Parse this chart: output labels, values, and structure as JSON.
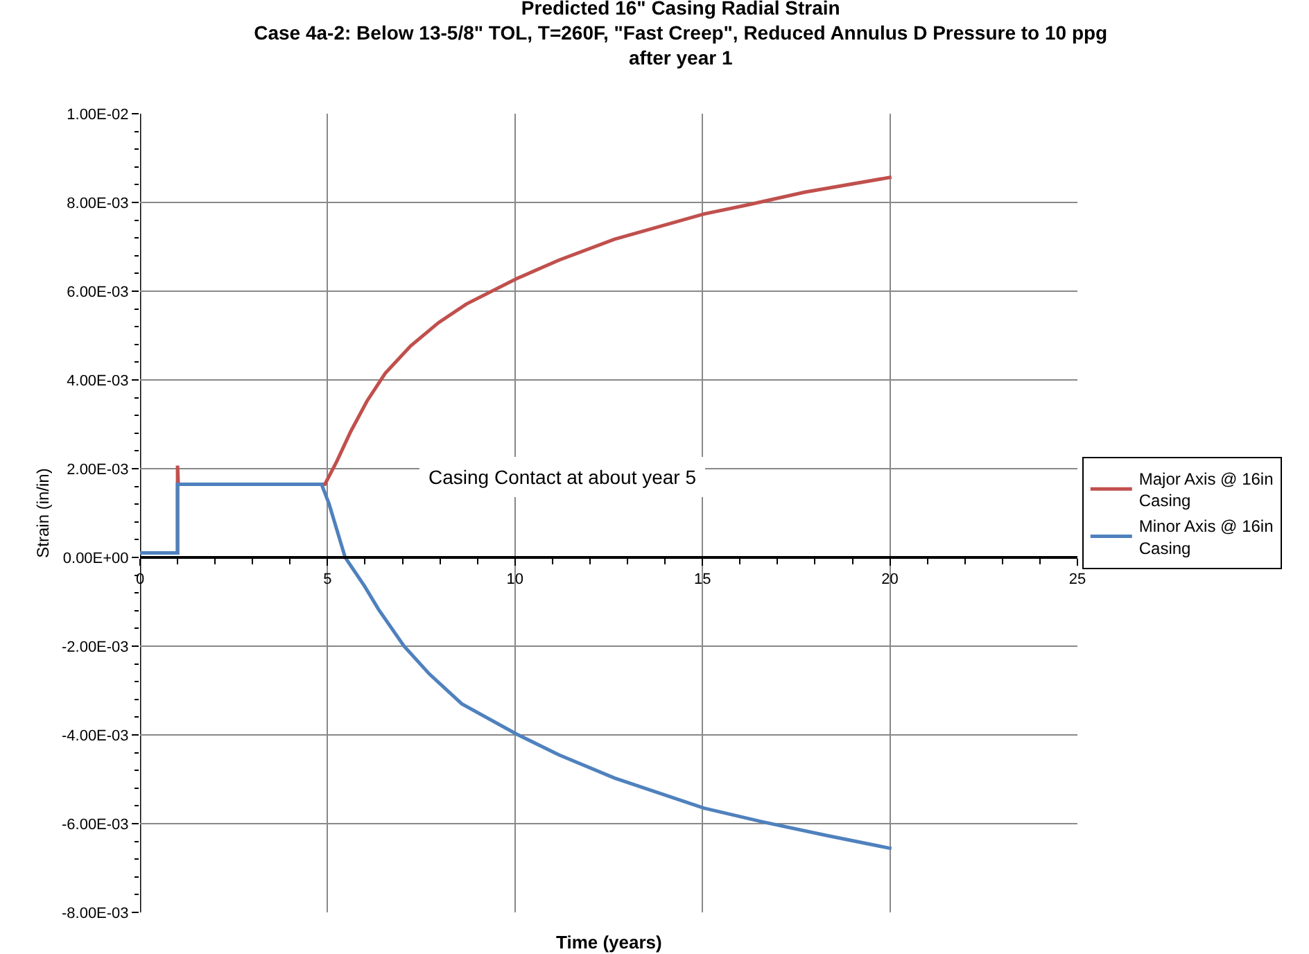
{
  "chart_data": {
    "type": "line",
    "title": "Predicted 16\" Casing Radial Strain",
    "subtitle": "Case 4a-2: Below 13-5/8\" TOL, T=260F, \"Fast Creep\", Reduced Annulus D Pressure to 10 ppg\nafter year 1",
    "xlabel": "Time (years)",
    "ylabel": "Strain (in/in)",
    "annotations": [
      "Casing Contact at about year 5"
    ],
    "series": [
      {
        "name": "Major Axis @ 16in Casing",
        "color": "#c0504d",
        "x": [
          0,
          1.0,
          1.0,
          1.02,
          4.93,
          5.25,
          5.62,
          6.05,
          6.54,
          7.22,
          7.96,
          8.7,
          10.04,
          11.17,
          12.65,
          15.04,
          16.23,
          17.72,
          20.04
        ],
        "values": [
          0.0001,
          0.0001,
          0.00207,
          0.00165,
          0.00165,
          0.00217,
          0.00284,
          0.00352,
          0.00415,
          0.00477,
          0.00529,
          0.00571,
          0.00628,
          0.0067,
          0.00717,
          0.00774,
          0.00795,
          0.00823,
          0.00857
        ]
      },
      {
        "name": "Minor Axis @ 16in Casing",
        "color": "#4f81bd",
        "x": [
          0,
          1.0,
          1.0,
          4.84,
          5.04,
          5.47,
          5.99,
          6.36,
          7.04,
          7.72,
          8.58,
          10.04,
          11.17,
          12.65,
          15.04,
          16.6,
          18.33,
          20.04
        ],
        "values": [
          0.0001,
          0.0001,
          0.00165,
          0.00165,
          0.00121,
          0.0,
          -0.00065,
          -0.00117,
          -0.002,
          -0.00263,
          -0.0033,
          -0.00398,
          -0.00445,
          -0.00497,
          -0.00565,
          -0.00596,
          -0.00627,
          -0.00656
        ]
      }
    ],
    "xlim": [
      0,
      25
    ],
    "xticks": [
      0,
      5,
      10,
      15,
      20,
      25
    ],
    "ylim": [
      -0.008,
      0.01
    ],
    "yticks": [
      {
        "value": -0.008,
        "label": "-8.00E-03"
      },
      {
        "value": -0.006,
        "label": "-6.00E-03"
      },
      {
        "value": -0.004,
        "label": "-4.00E-03"
      },
      {
        "value": -0.002,
        "label": "-2.00E-03"
      },
      {
        "value": 0,
        "label": "0.00E+00"
      },
      {
        "value": 0.002,
        "label": "2.00E-03"
      },
      {
        "value": 0.004,
        "label": "4.00E-03"
      },
      {
        "value": 0.006,
        "label": "6.00E-03"
      },
      {
        "value": 0.008,
        "label": "8.00E-03"
      },
      {
        "value": 0.01,
        "label": "1.00E-02"
      }
    ],
    "grid": true,
    "legend": "right",
    "marker": "none",
    "line_style": "solid"
  }
}
